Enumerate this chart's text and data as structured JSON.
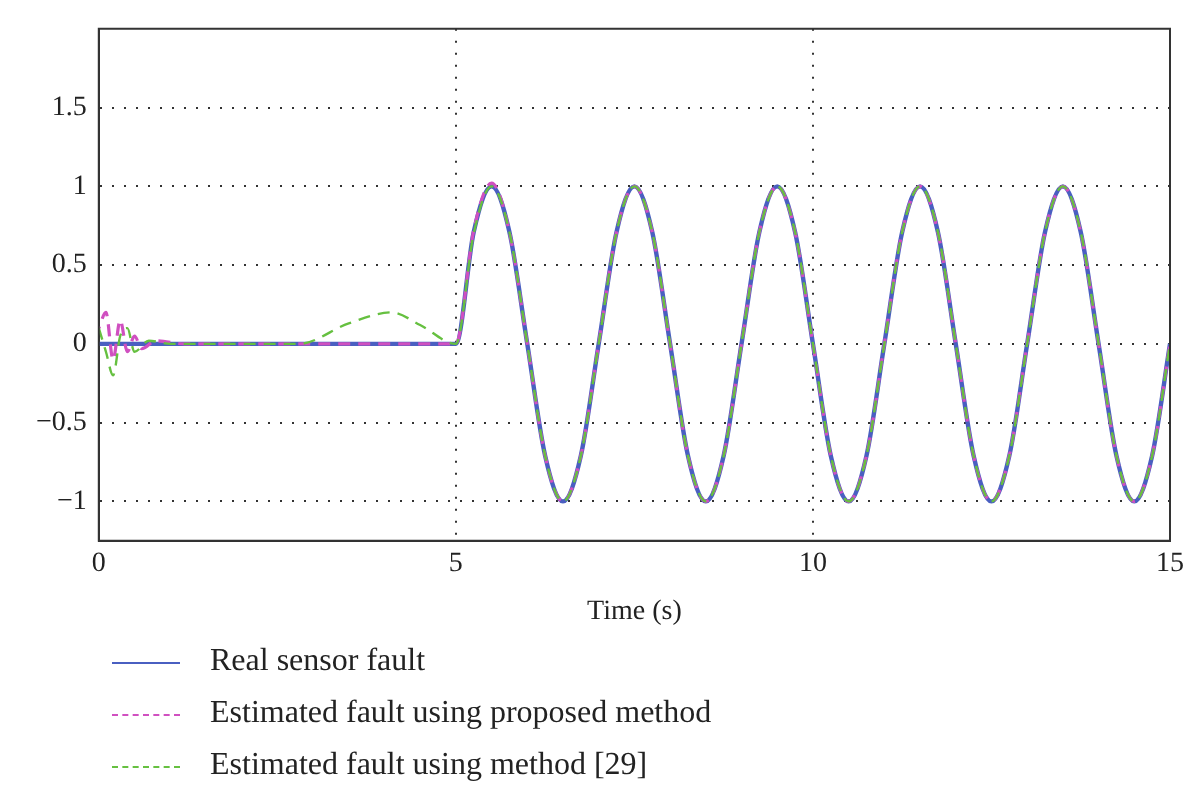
{
  "chart_data": {
    "type": "line",
    "xlabel": "Time (s)",
    "xlim": [
      0,
      15
    ],
    "xticks": [
      0,
      5,
      10,
      15
    ],
    "ylim": [
      -1.25,
      2
    ],
    "yticks": [
      {
        "value": -1,
        "label": "−1"
      },
      {
        "value": -0.5,
        "label": "−0.5"
      },
      0,
      0.5,
      1,
      1.5
    ],
    "grid": true,
    "legend": "bottom",
    "marker": "none",
    "series": [
      {
        "name": "Real sensor fault",
        "color": "#4a5fc1",
        "line_style": "solid",
        "x": [
          0,
          5,
          5.25,
          5.5,
          5.75,
          6,
          6.25,
          6.5,
          6.75,
          7,
          7.25,
          7.5,
          7.75,
          8,
          8.25,
          8.5,
          8.75,
          9,
          9.25,
          9.5,
          9.75,
          10,
          10.25,
          10.5,
          10.75,
          11,
          11.25,
          11.5,
          11.75,
          12,
          12.25,
          12.5,
          12.75,
          13,
          13.25,
          13.5,
          13.75,
          14,
          14.25,
          14.5,
          14.75,
          15
        ],
        "values": [
          0,
          0,
          0.71,
          1,
          0.71,
          0,
          -0.71,
          -1,
          -0.71,
          0,
          0.71,
          1,
          0.71,
          0,
          -0.71,
          -1,
          -0.71,
          0,
          0.71,
          1,
          0.71,
          0,
          -0.71,
          -1,
          -0.71,
          0,
          0.71,
          1,
          0.71,
          0,
          -0.71,
          -1,
          -0.71,
          0,
          0.71,
          1,
          0.71,
          0,
          -0.71,
          -1,
          -0.71,
          0
        ]
      },
      {
        "name": "Estimated fault using proposed method",
        "color": "#d050c0",
        "line_style": "dashed",
        "x": [
          0,
          0.1,
          0.2,
          0.3,
          0.4,
          0.5,
          0.6,
          0.8,
          1.2,
          5,
          5.25,
          5.5,
          5.75,
          6,
          6.25,
          6.5,
          6.75,
          7,
          7.25,
          7.5,
          7.75,
          8,
          8.25,
          8.5,
          8.75,
          9,
          9.25,
          9.5,
          9.75,
          10,
          10.25,
          10.5,
          10.75,
          11,
          11.25,
          11.5,
          11.75,
          12,
          12.25,
          12.5,
          12.75,
          13,
          13.25,
          13.5,
          13.75,
          14,
          14.25,
          14.5,
          14.75,
          15
        ],
        "values": [
          0.1,
          0.2,
          -0.1,
          0.15,
          -0.05,
          0.05,
          -0.03,
          0.02,
          0,
          0,
          0.72,
          1.02,
          0.71,
          0,
          -0.71,
          -1,
          -0.71,
          0,
          0.71,
          1,
          0.71,
          0,
          -0.71,
          -1,
          -0.71,
          0,
          0.71,
          1,
          0.71,
          0,
          -0.71,
          -1,
          -0.71,
          0,
          0.71,
          1,
          0.71,
          0,
          -0.71,
          -1,
          -0.71,
          0,
          0.71,
          1,
          0.71,
          0,
          -0.71,
          -1,
          -0.71,
          0
        ]
      },
      {
        "name": "Estimated fault using method [29]",
        "color": "#66c040",
        "line_style": "dashed",
        "x": [
          0,
          0.1,
          0.2,
          0.3,
          0.4,
          0.5,
          0.7,
          1,
          2.8,
          3.5,
          4.1,
          4.5,
          5,
          5.25,
          5.5,
          5.75,
          6,
          6.25,
          6.5,
          6.75,
          7,
          7.25,
          7.5,
          7.75,
          8,
          8.25,
          8.5,
          8.75,
          9,
          9.25,
          9.5,
          9.75,
          10,
          10.25,
          10.5,
          10.75,
          11,
          11.25,
          11.5,
          11.75,
          12,
          12.25,
          12.5,
          12.75,
          13,
          13.25,
          13.5,
          13.75,
          14,
          14.25,
          14.5,
          14.75,
          15
        ],
        "values": [
          0.1,
          -0.05,
          -0.2,
          0.05,
          0.1,
          -0.05,
          0.02,
          0,
          0,
          0.13,
          0.2,
          0.12,
          0,
          0.7,
          1,
          0.71,
          0,
          -0.71,
          -1,
          -0.71,
          0,
          0.71,
          1,
          0.71,
          0,
          -0.71,
          -1,
          -0.71,
          0,
          0.71,
          1,
          0.71,
          0,
          -0.71,
          -1,
          -0.71,
          0,
          0.71,
          1,
          0.71,
          0,
          -0.71,
          -1,
          -0.71,
          0,
          0.71,
          1,
          0.71,
          0,
          -0.71,
          -1,
          -0.71,
          0
        ]
      }
    ]
  }
}
